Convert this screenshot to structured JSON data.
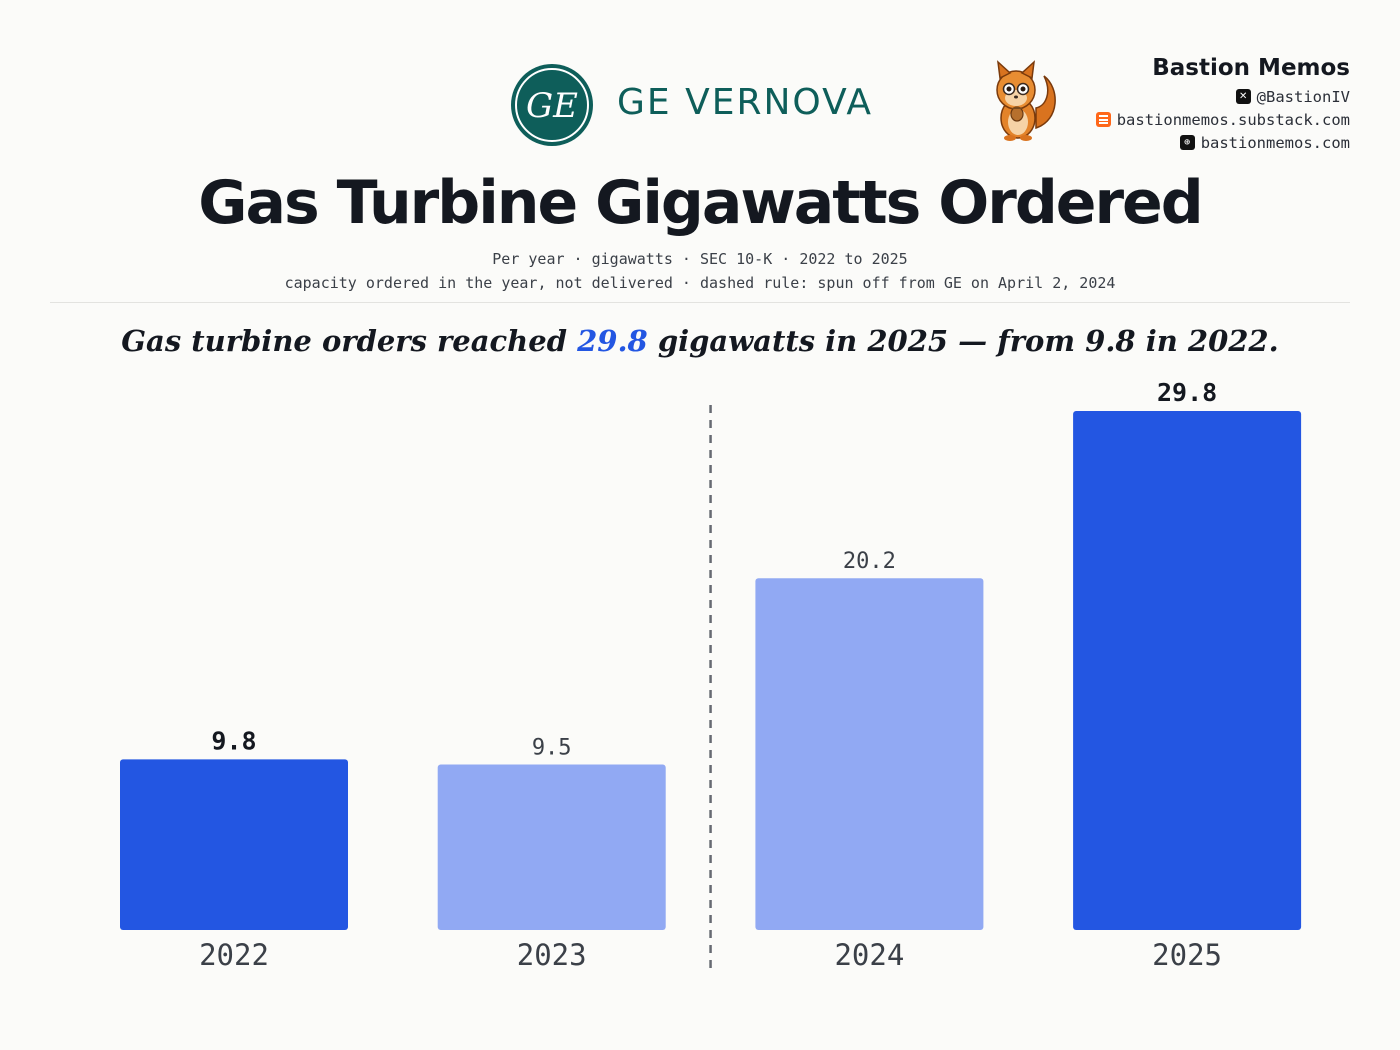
{
  "header": {
    "company_logo_text": "GE",
    "company_name": "GE VERNOVA",
    "brand_name": "Bastion Memos",
    "links": [
      {
        "icon": "x-icon",
        "text": "@BastionIV",
        "color": "#111111"
      },
      {
        "icon": "substack-icon",
        "text": "bastionmemos.substack.com",
        "color": "#ff6719"
      },
      {
        "icon": "globe-icon",
        "text": "bastionmemos.com",
        "color": "#111111"
      }
    ]
  },
  "title": "Gas Turbine Gigawatts Ordered",
  "subtitle_1": "Per year · gigawatts · SEC 10-K · 2022 to 2025",
  "subtitle_2": "capacity ordered in the year, not delivered · dashed rule: spun off from GE on April 2, 2024",
  "headline": {
    "before": "Gas turbine orders reached ",
    "highlight": "29.8",
    "after": " gigawatts in 2025 — from 9.8 in 2022."
  },
  "colors": {
    "accent": "#2356e2",
    "muted_bar": "#91a9f3",
    "brand_teal": "#0e5e5a"
  },
  "chart_data": {
    "type": "bar",
    "categories": [
      "2022",
      "2023",
      "2024",
      "2025"
    ],
    "values": [
      9.8,
      9.5,
      20.2,
      29.8
    ],
    "highlighted": [
      true,
      false,
      false,
      true
    ],
    "value_labels": [
      "9.8",
      "9.5",
      "20.2",
      "29.8"
    ],
    "ylim": [
      0,
      29.8
    ],
    "grid": false,
    "divider_between": [
      "2023",
      "2024"
    ],
    "divider_style": "dashed"
  }
}
